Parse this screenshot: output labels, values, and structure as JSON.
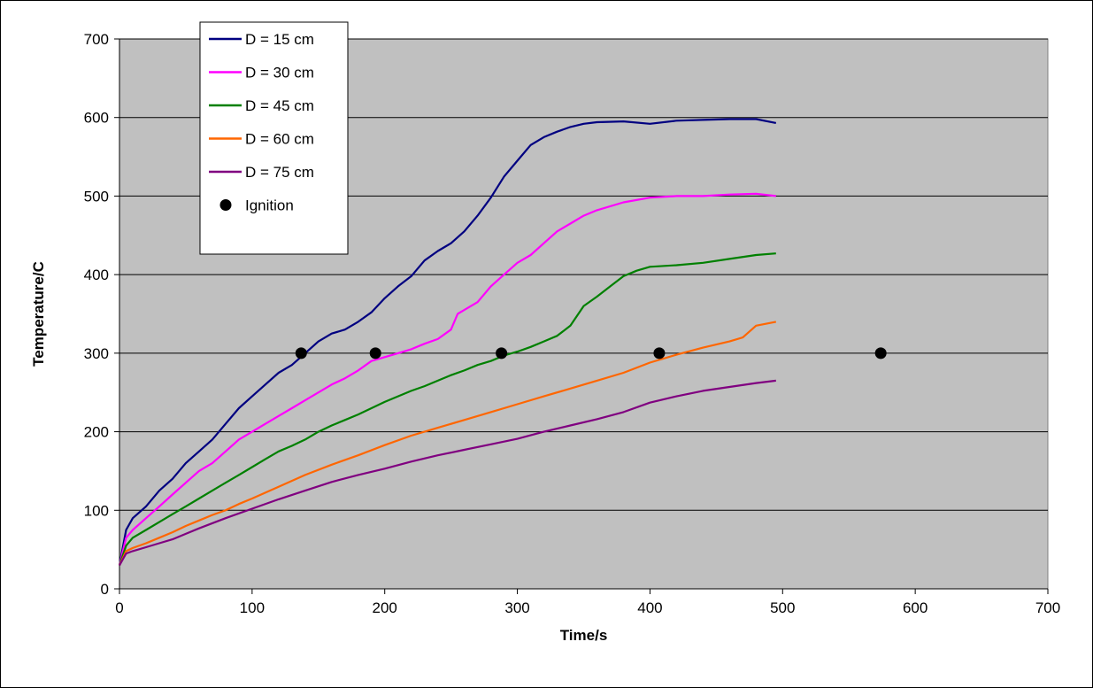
{
  "chart_data": {
    "type": "line",
    "title": "",
    "xlabel": "Time/s",
    "ylabel": "Temperature/C",
    "xlim": [
      0,
      700
    ],
    "ylim": [
      0,
      700
    ],
    "xticks": [
      0,
      100,
      200,
      300,
      400,
      500,
      600,
      700
    ],
    "yticks": [
      0,
      100,
      200,
      300,
      400,
      500,
      600,
      700
    ],
    "x_tick_labels": [
      "0",
      "100",
      "200",
      "300",
      "400",
      "500",
      "600",
      "700"
    ],
    "y_tick_labels": [
      "0",
      "100",
      "200",
      "300",
      "400",
      "500",
      "600",
      "700"
    ],
    "grid": "horizontal",
    "plot_background": "#c0c0c0",
    "legend_position": "top-left",
    "series": [
      {
        "name": "D = 15 cm",
        "color": "#000080",
        "x": [
          0,
          5,
          10,
          20,
          30,
          40,
          50,
          60,
          70,
          80,
          90,
          100,
          110,
          120,
          130,
          140,
          150,
          160,
          170,
          180,
          190,
          200,
          210,
          220,
          230,
          240,
          250,
          260,
          270,
          280,
          290,
          300,
          310,
          320,
          330,
          340,
          350,
          360,
          380,
          400,
          420,
          440,
          460,
          480,
          495
        ],
        "y": [
          30,
          75,
          90,
          105,
          125,
          140,
          160,
          175,
          190,
          210,
          230,
          245,
          260,
          275,
          285,
          300,
          315,
          325,
          330,
          340,
          352,
          370,
          385,
          398,
          418,
          430,
          440,
          455,
          475,
          498,
          525,
          545,
          565,
          575,
          582,
          588,
          592,
          594,
          595,
          592,
          596,
          597,
          598,
          598,
          593
        ]
      },
      {
        "name": "D = 30 cm",
        "color": "#ff00ff",
        "x": [
          0,
          5,
          10,
          20,
          30,
          40,
          50,
          60,
          70,
          80,
          90,
          100,
          110,
          120,
          130,
          140,
          150,
          160,
          170,
          180,
          190,
          200,
          210,
          220,
          230,
          240,
          250,
          255,
          260,
          270,
          280,
          290,
          300,
          310,
          320,
          330,
          340,
          350,
          360,
          380,
          400,
          420,
          440,
          460,
          480,
          495
        ],
        "y": [
          30,
          65,
          75,
          90,
          105,
          120,
          135,
          150,
          160,
          175,
          190,
          200,
          210,
          220,
          230,
          240,
          250,
          260,
          268,
          278,
          290,
          295,
          300,
          305,
          312,
          318,
          330,
          350,
          355,
          365,
          385,
          400,
          415,
          425,
          440,
          455,
          465,
          475,
          482,
          492,
          498,
          500,
          500,
          502,
          503,
          500
        ]
      },
      {
        "name": "D = 45 cm",
        "color": "#008000",
        "x": [
          0,
          5,
          10,
          20,
          30,
          40,
          50,
          60,
          70,
          80,
          90,
          100,
          110,
          120,
          130,
          140,
          150,
          160,
          170,
          180,
          190,
          200,
          210,
          220,
          230,
          240,
          250,
          260,
          270,
          280,
          290,
          300,
          310,
          320,
          330,
          340,
          350,
          360,
          370,
          380,
          390,
          400,
          420,
          440,
          460,
          480,
          495
        ],
        "y": [
          30,
          55,
          65,
          75,
          85,
          95,
          105,
          115,
          125,
          135,
          145,
          155,
          165,
          175,
          182,
          190,
          200,
          208,
          215,
          222,
          230,
          238,
          245,
          252,
          258,
          265,
          272,
          278,
          285,
          290,
          297,
          302,
          308,
          315,
          322,
          335,
          360,
          372,
          385,
          398,
          405,
          410,
          412,
          415,
          420,
          425,
          427
        ]
      },
      {
        "name": "D = 60 cm",
        "color": "#ff6600",
        "x": [
          0,
          5,
          10,
          20,
          30,
          40,
          50,
          60,
          70,
          80,
          90,
          100,
          120,
          140,
          160,
          180,
          200,
          220,
          240,
          260,
          280,
          300,
          320,
          340,
          360,
          380,
          400,
          420,
          440,
          460,
          470,
          480,
          495
        ],
        "y": [
          30,
          48,
          52,
          58,
          65,
          72,
          80,
          87,
          94,
          100,
          108,
          115,
          130,
          145,
          158,
          170,
          183,
          195,
          205,
          215,
          225,
          235,
          245,
          255,
          265,
          275,
          288,
          298,
          307,
          315,
          320,
          335,
          340
        ]
      },
      {
        "name": "D = 75 cm",
        "color": "#800080",
        "x": [
          0,
          5,
          10,
          20,
          30,
          40,
          50,
          60,
          80,
          100,
          120,
          140,
          160,
          180,
          200,
          220,
          240,
          260,
          280,
          300,
          320,
          340,
          360,
          380,
          400,
          420,
          440,
          460,
          480,
          495
        ],
        "y": [
          30,
          45,
          48,
          53,
          58,
          63,
          70,
          77,
          90,
          102,
          114,
          125,
          136,
          145,
          153,
          162,
          170,
          177,
          184,
          191,
          200,
          208,
          216,
          225,
          237,
          245,
          252,
          257,
          262,
          265
        ]
      }
    ],
    "ignition_points": {
      "name": "Ignition",
      "color": "#000000",
      "x": [
        137,
        193,
        288,
        407,
        574
      ],
      "y": [
        300,
        300,
        300,
        300,
        300
      ]
    }
  }
}
